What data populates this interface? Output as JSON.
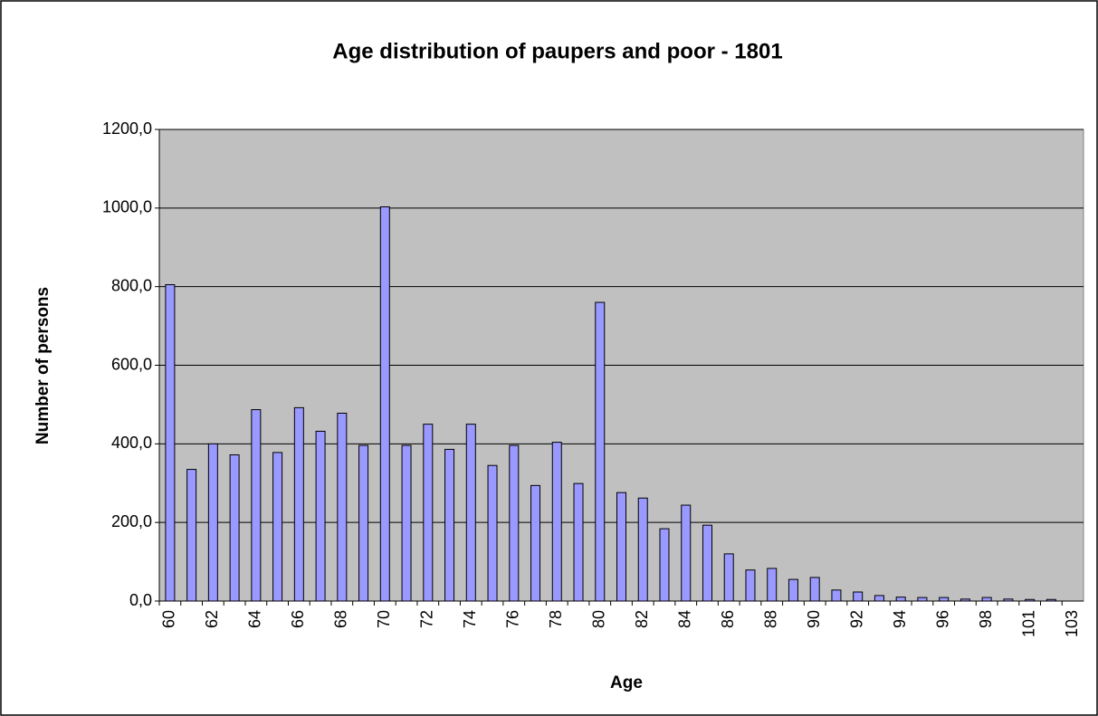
{
  "chart_data": {
    "type": "bar",
    "title": "Age distribution of paupers and poor - 1801",
    "x_label": "Age",
    "y_label": "Number of persons",
    "categories": [
      "60",
      null,
      "62",
      null,
      "64",
      null,
      "66",
      null,
      "68",
      null,
      "70",
      null,
      "72",
      null,
      "74",
      null,
      "76",
      null,
      "78",
      null,
      "80",
      null,
      "82",
      null,
      "84",
      null,
      "86",
      null,
      "88",
      null,
      "90",
      null,
      "92",
      null,
      "94",
      null,
      "96",
      null,
      "98",
      null,
      "101",
      null,
      "103"
    ],
    "values": [
      805,
      335,
      400,
      372,
      487,
      378,
      492,
      432,
      478,
      396,
      1003,
      396,
      450,
      386,
      450,
      345,
      396,
      294,
      404,
      299,
      760,
      276,
      262,
      184,
      244,
      193,
      120,
      79,
      83,
      55,
      60,
      28,
      23,
      14,
      10,
      9,
      9,
      5,
      9,
      5,
      4,
      4,
      0
    ],
    "color": "#9999ff",
    "ylim": [
      0,
      1200
    ],
    "yticks": [
      {
        "value": 0,
        "label": "0,0"
      },
      {
        "value": 200,
        "label": "200,0"
      },
      {
        "value": 400,
        "label": "400,0"
      },
      {
        "value": 600,
        "label": "600,0"
      },
      {
        "value": 800,
        "label": "800,0"
      },
      {
        "value": 1000,
        "label": "1000,0"
      },
      {
        "value": 1200,
        "label": "1200,0"
      }
    ],
    "grid": true
  }
}
